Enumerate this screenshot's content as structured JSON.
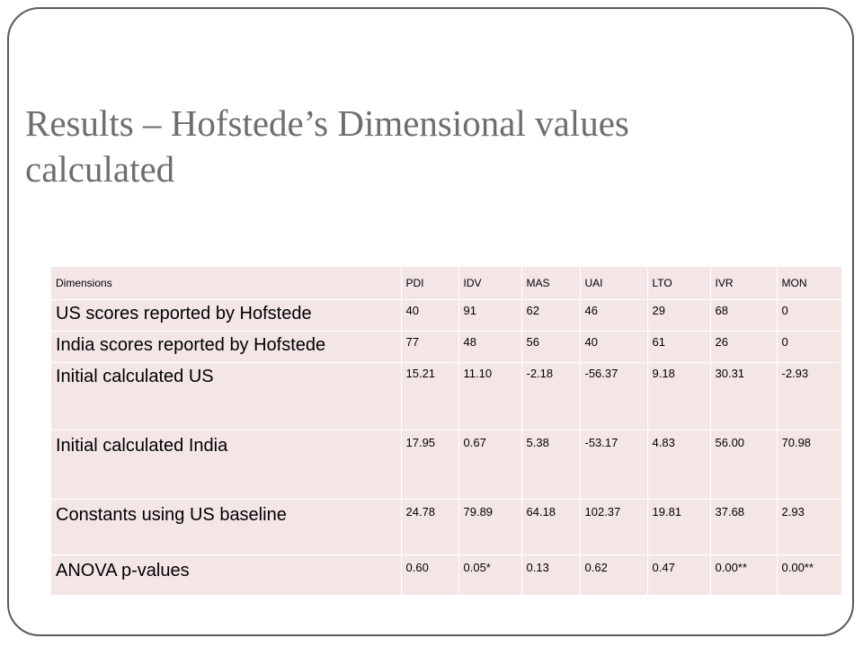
{
  "slide": {
    "title_line1": "Results – Hofstede’s Dimensional values",
    "title_line2": "calculated"
  },
  "table": {
    "columns": [
      "Dimensions",
      "PDI",
      "IDV",
      "MAS",
      "UAI",
      "LTO",
      "IVR",
      "MON"
    ],
    "rows": [
      {
        "label": "US scores reported by Hofstede",
        "values": [
          "40",
          "91",
          "62",
          "46",
          "29",
          "68",
          "0"
        ]
      },
      {
        "label": "India scores reported by Hofstede",
        "values": [
          "77",
          "48",
          "56",
          "40",
          "61",
          "26",
          "0"
        ]
      },
      {
        "label": "Initial calculated US",
        "values": [
          "15.21",
          "11.10",
          "-2.18",
          "-56.37",
          "9.18",
          "30.31",
          "-2.93"
        ]
      },
      {
        "label": "Initial calculated India",
        "values": [
          "17.95",
          "0.67",
          "5.38",
          "-53.17",
          "4.83",
          "56.00",
          "70.98"
        ]
      },
      {
        "label": "Constants using US baseline",
        "values": [
          "24.78",
          "79.89",
          "64.18",
          "102.37",
          "19.81",
          "37.68",
          "2.93"
        ]
      },
      {
        "label": "ANOVA p-values",
        "values": [
          "0.60",
          "0.05*",
          "0.13",
          "0.62",
          "0.47",
          "0.00**",
          "0.00**"
        ]
      }
    ]
  }
}
